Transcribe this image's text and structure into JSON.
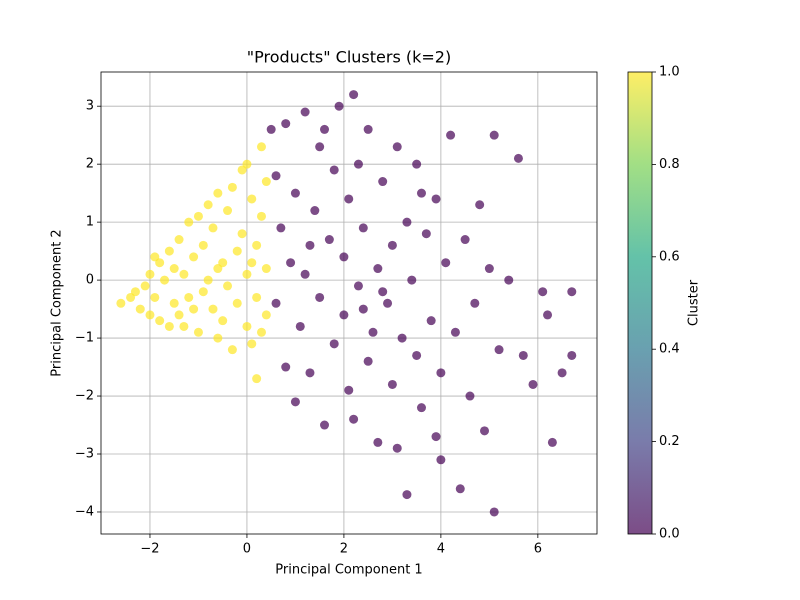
{
  "chart_data": {
    "type": "scatter",
    "title": "\"Products\" Clusters (k=2)",
    "x_label": "Principal Component 1",
    "y_label": "Principal Component 2",
    "xlim": [
      -3.01,
      7.22
    ],
    "ylim": [
      -4.38,
      3.59
    ],
    "xticks": [
      {
        "value": -2,
        "label": "−2"
      },
      0,
      2,
      4,
      6
    ],
    "yticks": [
      {
        "value": -4,
        "label": "−4"
      },
      {
        "value": -3,
        "label": "−3"
      },
      {
        "value": -2,
        "label": "−2"
      },
      {
        "value": -1,
        "label": "−1"
      },
      0,
      1,
      2,
      3
    ],
    "grid": true,
    "opacity": 0.7,
    "series": [
      {
        "color": "#fde725",
        "x": [
          -2.6,
          -2.4,
          -2.3,
          -2.2,
          -2.1,
          -2.0,
          -2.0,
          -1.9,
          -1.8,
          -1.8,
          -1.7,
          -1.6,
          -1.6,
          -1.5,
          -1.5,
          -1.4,
          -1.4,
          -1.3,
          -1.2,
          -1.2,
          -1.1,
          -1.0,
          -1.0,
          -0.9,
          -0.9,
          -0.8,
          -0.8,
          -0.7,
          -0.7,
          -0.6,
          -0.6,
          -0.5,
          -0.5,
          -0.4,
          -0.4,
          -0.3,
          -0.3,
          -0.2,
          -0.2,
          -0.1,
          -0.1,
          0.0,
          0.0,
          0.0,
          0.1,
          0.1,
          0.2,
          0.2,
          0.3,
          0.3,
          0.3,
          0.4,
          0.4,
          0.4,
          0.2,
          -1.3,
          -1.9,
          -0.6,
          -1.1,
          0.1
        ],
        "values": [
          -0.4,
          -0.3,
          -0.2,
          -0.5,
          -0.1,
          -0.6,
          0.1,
          -0.3,
          0.3,
          -0.7,
          0.0,
          0.5,
          -0.8,
          -0.4,
          0.2,
          0.7,
          -0.6,
          0.1,
          1.0,
          -0.3,
          0.4,
          1.1,
          -0.9,
          0.6,
          -0.2,
          1.3,
          0.0,
          -0.5,
          0.9,
          1.5,
          -1.0,
          0.3,
          -0.7,
          1.2,
          -0.1,
          1.6,
          -1.2,
          0.5,
          -0.4,
          1.9,
          0.8,
          -0.8,
          2.0,
          0.1,
          1.4,
          -1.1,
          0.6,
          -0.3,
          2.3,
          1.1,
          -0.9,
          1.7,
          0.2,
          -0.6,
          -1.7,
          -0.8,
          0.4,
          0.2,
          -0.5,
          0.3
        ]
      },
      {
        "color": "#440154",
        "x": [
          0.5,
          0.6,
          0.6,
          0.7,
          0.8,
          0.8,
          0.9,
          1.0,
          1.0,
          1.1,
          1.2,
          1.2,
          1.3,
          1.4,
          1.5,
          1.5,
          1.6,
          1.7,
          1.8,
          1.8,
          1.9,
          2.0,
          2.0,
          2.1,
          2.1,
          2.2,
          2.2,
          2.3,
          2.3,
          2.4,
          2.5,
          2.5,
          2.6,
          2.7,
          2.7,
          2.8,
          2.9,
          3.0,
          3.0,
          3.1,
          3.1,
          3.2,
          3.3,
          3.3,
          3.4,
          3.5,
          3.5,
          3.6,
          3.7,
          3.8,
          3.9,
          4.0,
          4.0,
          4.1,
          4.2,
          4.3,
          4.4,
          4.5,
          4.6,
          4.7,
          4.8,
          4.9,
          5.0,
          5.1,
          5.1,
          5.2,
          5.4,
          5.6,
          5.7,
          5.9,
          6.1,
          6.2,
          6.3,
          6.5,
          6.7,
          6.7,
          1.6,
          2.8,
          3.6,
          2.4,
          1.3,
          3.9
        ],
        "values": [
          2.6,
          1.8,
          -0.4,
          0.9,
          -1.5,
          2.7,
          0.3,
          -2.1,
          1.5,
          -0.8,
          2.9,
          0.1,
          -1.6,
          1.2,
          -0.3,
          2.3,
          -2.5,
          0.7,
          -1.1,
          1.9,
          3.0,
          -0.6,
          0.4,
          -1.9,
          1.4,
          -2.4,
          3.2,
          2.0,
          -0.1,
          0.9,
          -1.4,
          2.6,
          -0.9,
          0.2,
          -2.8,
          1.7,
          -0.4,
          -1.8,
          0.6,
          2.3,
          -2.9,
          -1.0,
          1.0,
          -3.7,
          0.0,
          2.0,
          -1.3,
          -2.2,
          0.8,
          -0.7,
          1.4,
          -3.1,
          -1.6,
          0.3,
          2.5,
          -0.9,
          -3.6,
          0.7,
          -2.0,
          -0.4,
          1.3,
          -2.6,
          0.2,
          2.5,
          -4.0,
          -1.2,
          0.0,
          2.1,
          -1.3,
          -1.8,
          -0.2,
          -0.6,
          -2.8,
          -1.6,
          -0.2,
          -1.3,
          2.6,
          -0.2,
          1.5,
          -0.5,
          0.6,
          -2.7
        ]
      }
    ],
    "colorbar": {
      "label": "Cluster",
      "lim": [
        0,
        1
      ],
      "ticks": [
        {
          "value": 0,
          "label": "0.0"
        },
        {
          "value": 0.2,
          "label": "0.2"
        },
        {
          "value": 0.4,
          "label": "0.4"
        },
        {
          "value": 0.6,
          "label": "0.6"
        },
        {
          "value": 0.8,
          "label": "0.8"
        },
        {
          "value": 1,
          "label": "1.0"
        }
      ],
      "colors": [
        "#440154",
        "#414487",
        "#2a788e",
        "#22a884",
        "#7ad151",
        "#fde725"
      ]
    }
  }
}
